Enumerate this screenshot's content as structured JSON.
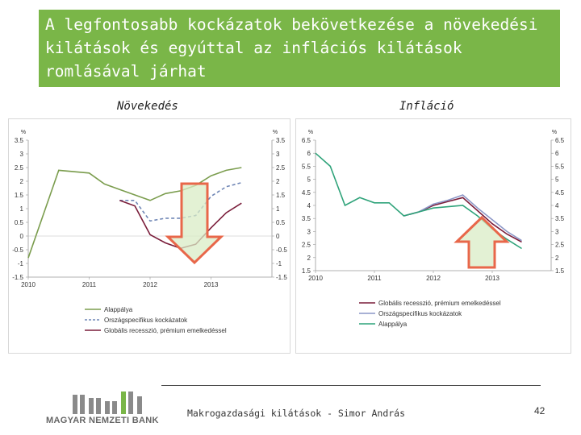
{
  "slide": {
    "title": "A legfontosabb kockázatok bekövetkezése a növekedési kilátások és egyúttal az inflációs kilátások romlásával járhat",
    "left_subtitle": "Növekedés",
    "right_subtitle": "Infláció",
    "footer": "Makrogazdasági kilátások - Simor András",
    "page_number": "42",
    "logo_text": "MAGYAR NEMZETI BANK",
    "colors": {
      "title_bg": "#7ab648",
      "arrow_fill": "#d9ecc6",
      "arrow_stroke": "#e8674a"
    }
  },
  "chart_data": [
    {
      "type": "line",
      "name": "growth",
      "ylabel_left": "%",
      "ylabel_right": "%",
      "ylim": [
        -1.5,
        3.5
      ],
      "yticks": [
        -1.5,
        -1,
        -0.5,
        0,
        0.5,
        1,
        1.5,
        2,
        2.5,
        3,
        3.5
      ],
      "ytick_labels": [
        "-1.5",
        "-1",
        "-0.5",
        "0",
        "0.5",
        "1",
        "1.5",
        "2",
        "2.5",
        "3",
        "3.5"
      ],
      "xlim": [
        2010,
        2014
      ],
      "xticks": [
        2010,
        2011,
        2012,
        2013
      ],
      "xtick_labels": [
        "2010",
        "2011",
        "2012",
        "2013"
      ],
      "grid": false,
      "legend_position": "bottom",
      "series": [
        {
          "name": "Alappálya",
          "color": "#7b9d4e",
          "dash": "solid",
          "x": [
            2010,
            2010.5,
            2011,
            2011.25,
            2011.5,
            2011.75,
            2012,
            2012.25,
            2012.5,
            2012.75,
            2013,
            2013.25,
            2013.5
          ],
          "y": [
            -0.8,
            2.4,
            2.3,
            1.9,
            1.7,
            1.5,
            1.3,
            1.55,
            1.65,
            1.85,
            2.2,
            2.4,
            2.5
          ]
        },
        {
          "name": "Országspecifikus kockázatok",
          "color": "#6f86b5",
          "dash": "dashed",
          "x": [
            2011.5,
            2011.75,
            2012,
            2012.25,
            2012.5,
            2012.75,
            2013,
            2013.25,
            2013.5
          ],
          "y": [
            1.3,
            1.3,
            0.55,
            0.65,
            0.65,
            0.75,
            1.45,
            1.8,
            1.95
          ]
        },
        {
          "name": "Globális recesszió, prémium emelkedéssel",
          "color": "#7a1d3a",
          "dash": "solid",
          "x": [
            2011.5,
            2011.75,
            2012,
            2012.25,
            2012.5,
            2012.75,
            2013,
            2013.25,
            2013.5
          ],
          "y": [
            1.3,
            1.1,
            0.05,
            -0.25,
            -0.45,
            -0.3,
            0.3,
            0.85,
            1.2
          ]
        }
      ],
      "annotation": {
        "type": "arrow",
        "direction": "down"
      }
    },
    {
      "type": "line",
      "name": "inflation",
      "ylabel_left": "%",
      "ylabel_right": "%",
      "ylim": [
        1.5,
        6.5
      ],
      "yticks": [
        1.5,
        2,
        2.5,
        3,
        3.5,
        4,
        4.5,
        5,
        5.5,
        6,
        6.5
      ],
      "ytick_labels": [
        "1.5",
        "2",
        "2.5",
        "3",
        "3.5",
        "4",
        "4.5",
        "5",
        "5.5",
        "6",
        "6.5"
      ],
      "xlim": [
        2010,
        2014
      ],
      "xticks": [
        2010,
        2011,
        2012,
        2013
      ],
      "xtick_labels": [
        "2010",
        "2011",
        "2012",
        "2013"
      ],
      "grid": false,
      "legend_position": "bottom",
      "series": [
        {
          "name": "Globális recesszió, prémium emelkedéssel",
          "color": "#7a1d3a",
          "dash": "solid",
          "x": [
            2011.5,
            2011.75,
            2012,
            2012.25,
            2012.5,
            2012.75,
            2013,
            2013.25,
            2013.5
          ],
          "y": [
            3.6,
            3.75,
            4.0,
            4.15,
            4.3,
            3.8,
            3.3,
            2.9,
            2.6
          ]
        },
        {
          "name": "Országspecifikus kockázatok",
          "color": "#8c97c7",
          "dash": "solid",
          "x": [
            2011.5,
            2011.75,
            2012,
            2012.25,
            2012.5,
            2012.75,
            2013,
            2013.25,
            2013.5
          ],
          "y": [
            3.6,
            3.75,
            4.05,
            4.2,
            4.4,
            3.9,
            3.45,
            3.0,
            2.65
          ]
        },
        {
          "name": "Alappálya",
          "color": "#2fa37a",
          "dash": "solid",
          "x": [
            2010,
            2010.25,
            2010.5,
            2010.75,
            2011,
            2011.25,
            2011.5,
            2011.75,
            2012,
            2012.25,
            2012.5,
            2012.75,
            2013,
            2013.25,
            2013.5
          ],
          "y": [
            6.0,
            5.5,
            4.0,
            4.3,
            4.1,
            4.1,
            3.6,
            3.75,
            3.9,
            3.95,
            4.0,
            3.6,
            3.1,
            2.7,
            2.35
          ]
        }
      ],
      "annotation": {
        "type": "arrow",
        "direction": "up"
      }
    }
  ]
}
